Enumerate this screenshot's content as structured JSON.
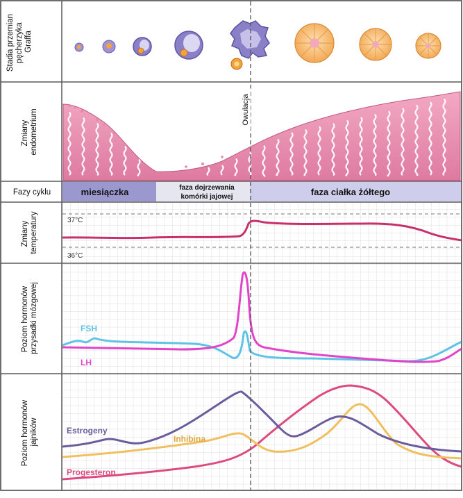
{
  "rows": {
    "follicle_label": [
      "Stadia przemian",
      "pęcherzyka",
      "Graffa"
    ],
    "endometrium_label": [
      "Zmiany",
      "endometrium"
    ],
    "phases_label": "Fazy cyklu",
    "temperature_label": [
      "Zmiany",
      "temperatury"
    ],
    "pituitary_label": [
      "Poziom hormonów",
      "przysadki mózgowej"
    ],
    "ovarian_label": [
      "Poziom hormonów",
      "jajników"
    ]
  },
  "ovulation_label": "Owulacja",
  "phases": {
    "menstruation": "miesiączka",
    "follicular_line1": "faza dojrzewania",
    "follicular_line2": "komórki jajowej",
    "luteal": "faza ciałka żółtego"
  },
  "temperature": {
    "high_label": "37°C",
    "low_label": "36°C"
  },
  "hormones": {
    "fsh": "FSH",
    "lh": "LH",
    "estrogen": "Estrogeny",
    "inhibin": "Inhibina",
    "progesterone": "Progesteron"
  },
  "colors": {
    "frame": "#5a5a5a",
    "menstruation_phase": "#9b98cf",
    "follicular_phase": "#e6e6f0",
    "luteal_phase": "#cfcdec",
    "temperature_curve": "#c8306b",
    "fsh": "#5ec3e6",
    "lh": "#e045c9",
    "estrogen": "#6b5c9e",
    "inhibin": "#f0c060",
    "progesterone": "#dd4a7f",
    "endometrium": "#e58aab",
    "follicle": "#8479c4",
    "corpus_luteum": "#f7b25c"
  }
}
